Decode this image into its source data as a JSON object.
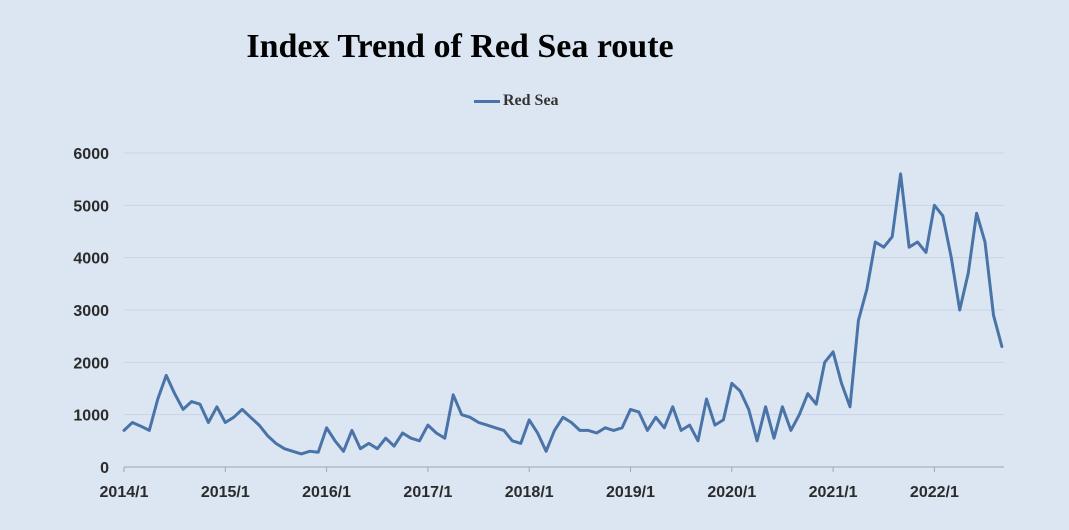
{
  "chart_data": {
    "type": "line",
    "title": "Index Trend of Red Sea route",
    "xlabel": "",
    "ylabel": "",
    "ylim": [
      0,
      6000
    ],
    "yticks": [
      0,
      1000,
      2000,
      3000,
      4000,
      5000,
      6000
    ],
    "xticks": [
      "2014/1",
      "2015/1",
      "2016/1",
      "2017/1",
      "2018/1",
      "2019/1",
      "2020/1",
      "2021/1",
      "2022/1"
    ],
    "x_range": [
      "2014/1",
      "2022/9"
    ],
    "grid": true,
    "legend_position": "top",
    "series": [
      {
        "name": "Red Sea",
        "color": "#4a74a8",
        "x": [
          "2014/1",
          "2014/2",
          "2014/3",
          "2014/4",
          "2014/5",
          "2014/6",
          "2014/7",
          "2014/8",
          "2014/9",
          "2014/10",
          "2014/11",
          "2014/12",
          "2015/1",
          "2015/2",
          "2015/3",
          "2015/4",
          "2015/5",
          "2015/6",
          "2015/7",
          "2015/8",
          "2015/9",
          "2015/10",
          "2015/11",
          "2015/12",
          "2016/1",
          "2016/2",
          "2016/3",
          "2016/4",
          "2016/5",
          "2016/6",
          "2016/7",
          "2016/8",
          "2016/9",
          "2016/10",
          "2016/11",
          "2016/12",
          "2017/1",
          "2017/2",
          "2017/3",
          "2017/4",
          "2017/5",
          "2017/6",
          "2017/7",
          "2017/8",
          "2017/9",
          "2017/10",
          "2017/11",
          "2017/12",
          "2018/1",
          "2018/2",
          "2018/3",
          "2018/4",
          "2018/5",
          "2018/6",
          "2018/7",
          "2018/8",
          "2018/9",
          "2018/10",
          "2018/11",
          "2018/12",
          "2019/1",
          "2019/2",
          "2019/3",
          "2019/4",
          "2019/5",
          "2019/6",
          "2019/7",
          "2019/8",
          "2019/9",
          "2019/10",
          "2019/11",
          "2019/12",
          "2020/1",
          "2020/2",
          "2020/3",
          "2020/4",
          "2020/5",
          "2020/6",
          "2020/7",
          "2020/8",
          "2020/9",
          "2020/10",
          "2020/11",
          "2020/12",
          "2021/1",
          "2021/2",
          "2021/3",
          "2021/4",
          "2021/5",
          "2021/6",
          "2021/7",
          "2021/8",
          "2021/9",
          "2021/10",
          "2021/11",
          "2021/12",
          "2022/1",
          "2022/2",
          "2022/3",
          "2022/4",
          "2022/5",
          "2022/6",
          "2022/7",
          "2022/8",
          "2022/9"
        ],
        "values": [
          700,
          850,
          780,
          700,
          1300,
          1750,
          1400,
          1100,
          1250,
          1200,
          850,
          1150,
          850,
          950,
          1100,
          950,
          800,
          600,
          450,
          350,
          300,
          250,
          300,
          280,
          750,
          500,
          300,
          700,
          350,
          450,
          350,
          550,
          400,
          650,
          550,
          500,
          800,
          650,
          550,
          1380,
          1000,
          950,
          850,
          800,
          750,
          700,
          500,
          450,
          900,
          650,
          300,
          700,
          950,
          850,
          700,
          700,
          650,
          750,
          700,
          750,
          1100,
          1050,
          700,
          950,
          750,
          1150,
          700,
          800,
          500,
          1300,
          800,
          900,
          1600,
          1450,
          1100,
          500,
          1150,
          550,
          1150,
          700,
          1000,
          1400,
          1200,
          2000,
          2200,
          1600,
          1150,
          2800,
          3400,
          4300,
          4200,
          4400,
          5600,
          4200,
          4300,
          4100,
          5000,
          4800,
          4000,
          3000,
          3700,
          4850,
          4300,
          2900,
          2300
        ]
      }
    ]
  }
}
